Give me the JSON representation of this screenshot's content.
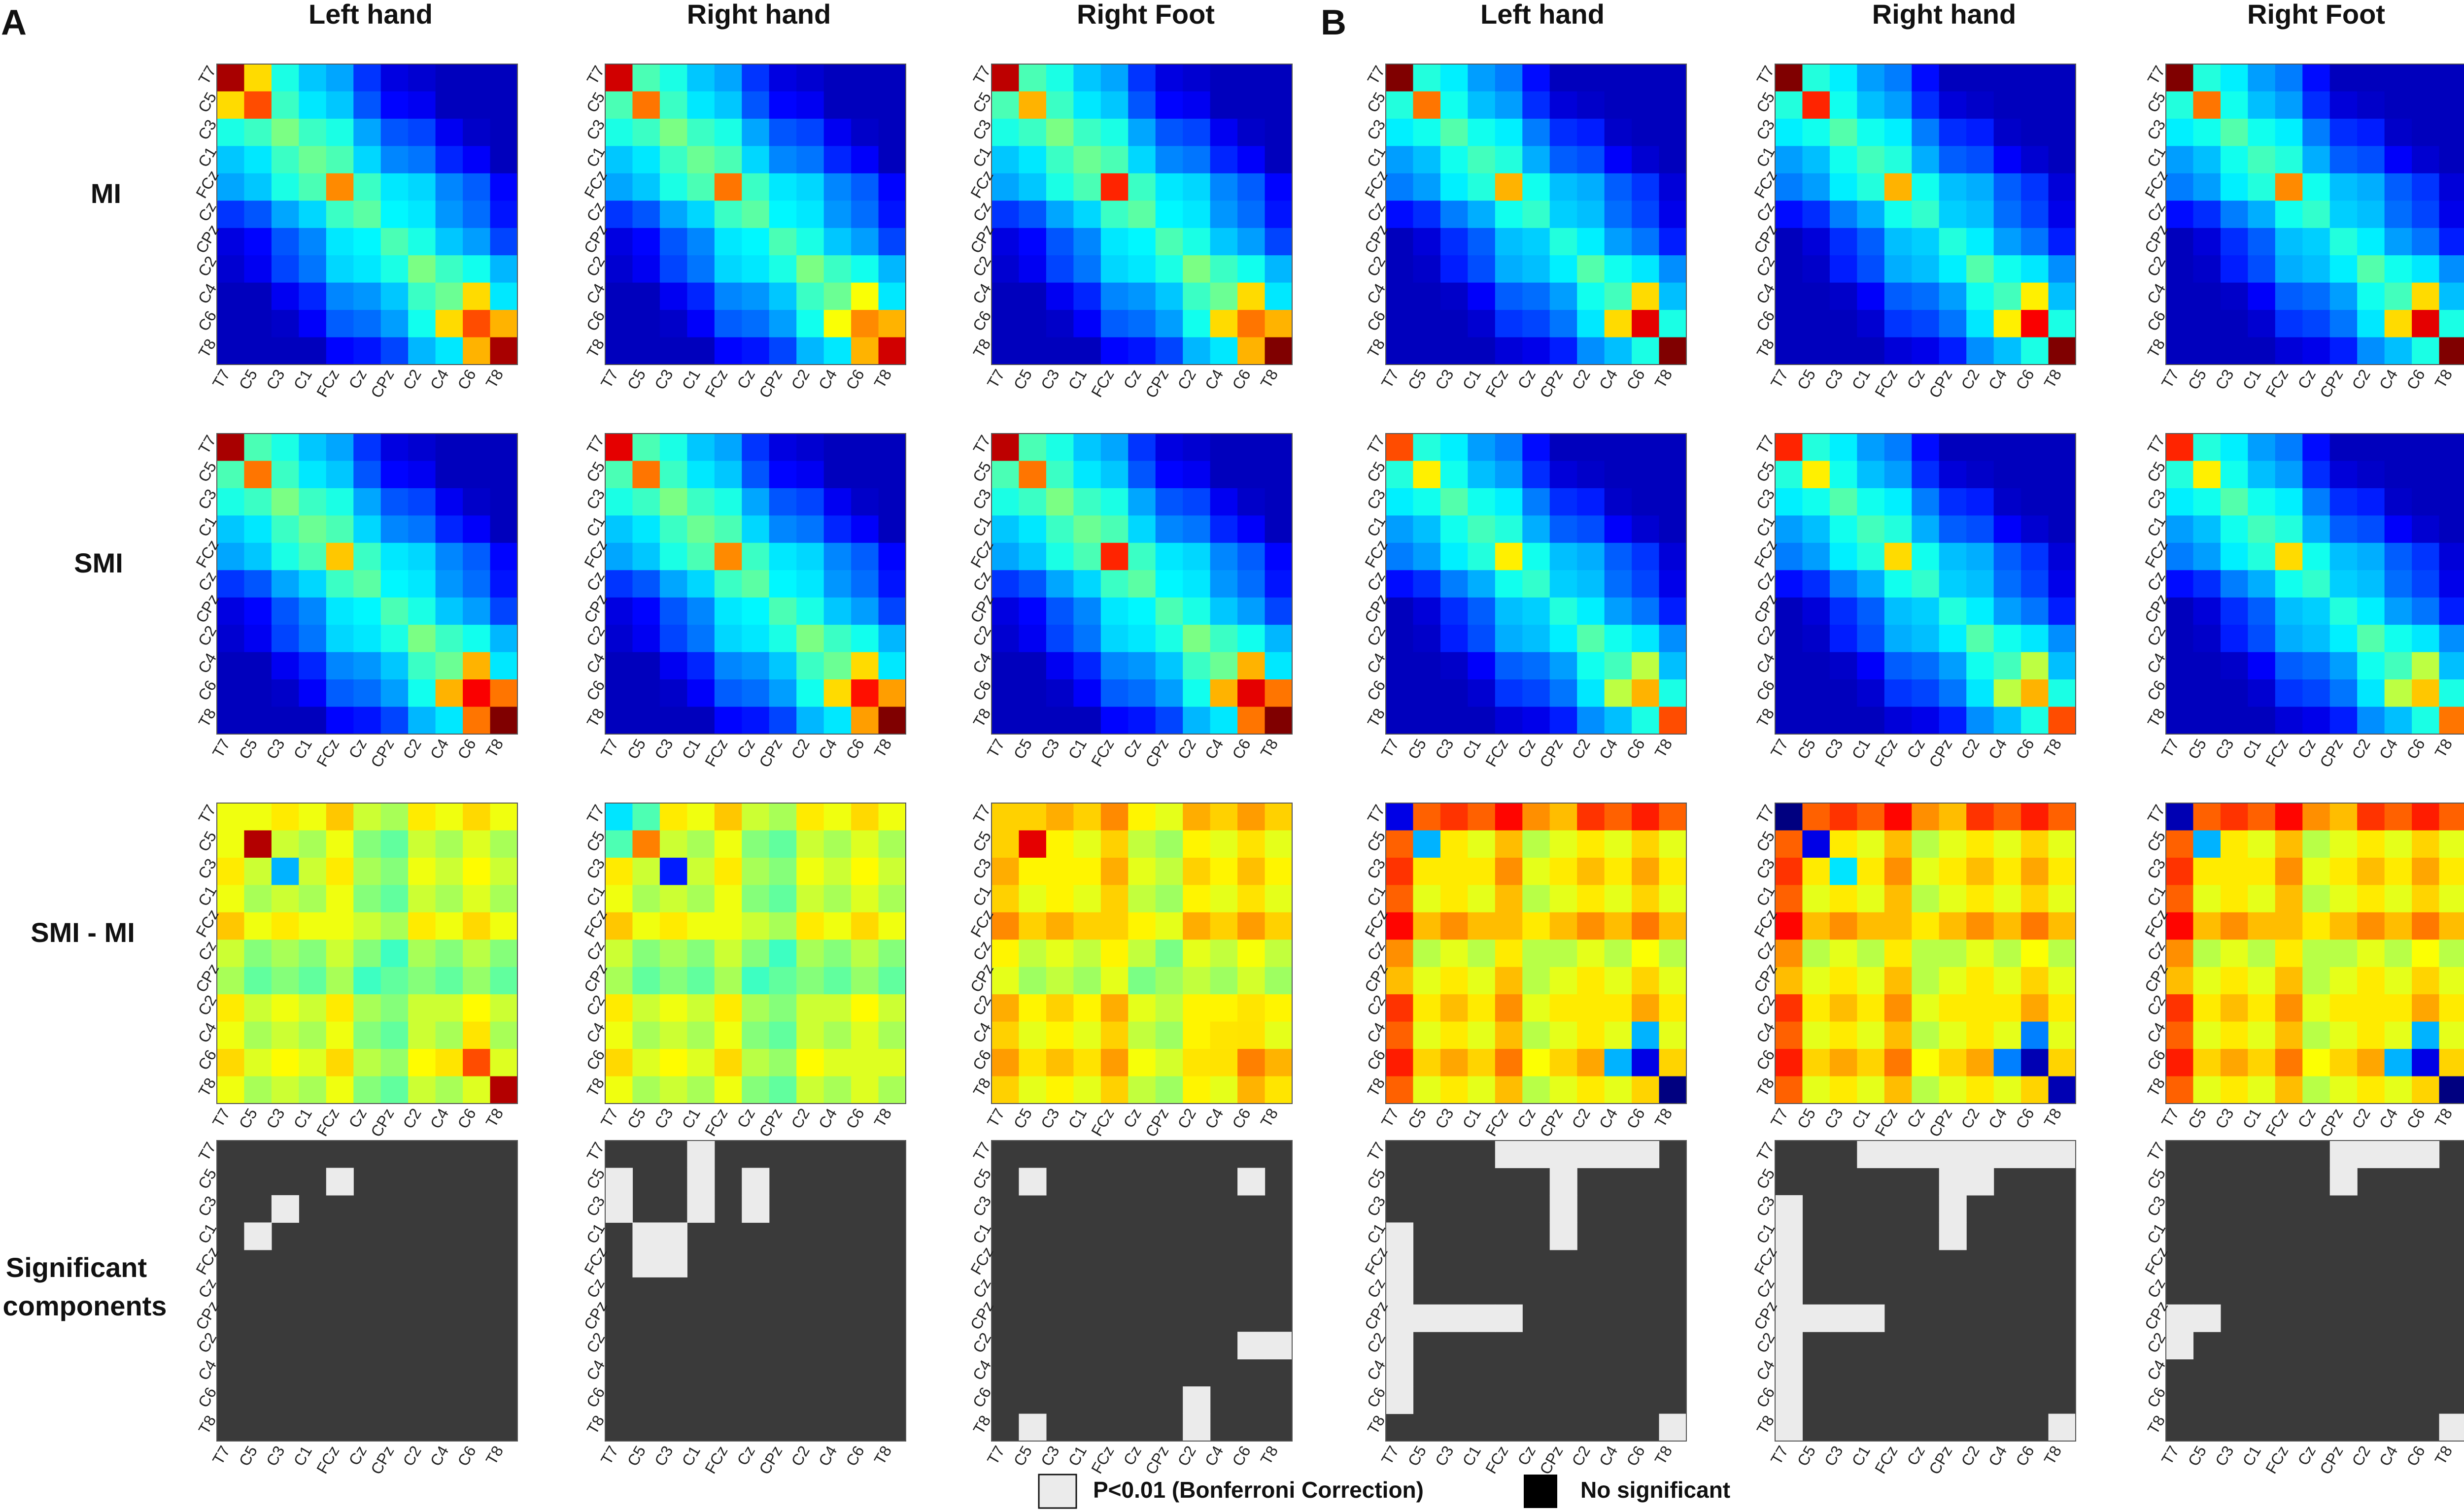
{
  "panel_letters": [
    "A",
    "B"
  ],
  "column_titles": [
    "Left hand",
    "Right hand",
    "Right Foot",
    "Left hand",
    "Right hand",
    "Right Foot"
  ],
  "row_labels": [
    [
      "MI"
    ],
    [
      "SMI"
    ],
    [
      "SMI - MI"
    ],
    [
      "Significant",
      "components"
    ]
  ],
  "channels": [
    "T7",
    "C5",
    "C3",
    "C1",
    "FCz",
    "Cz",
    "CPz",
    "C2",
    "C4",
    "C6",
    "T8"
  ],
  "colorbars": [
    {
      "ticks": [
        "50",
        "40",
        "30",
        "20",
        "10",
        "0"
      ],
      "range": [
        0,
        50
      ]
    },
    {
      "ticks": [
        "10",
        "5",
        "0",
        "-5",
        "-10"
      ],
      "range": [
        -10,
        10
      ]
    }
  ],
  "legend": {
    "significant_label": "P<0.01 (Bonferroni Correction)",
    "nonsignificant_label": "No significant",
    "significant_color": "#ebebeb",
    "nonsignificant_color": "#3a3a3a"
  },
  "chart_data": {
    "type": "heatmap",
    "colormap": "jet",
    "rows": [
      "MI",
      "SMI",
      "SMI - MI",
      "Significant components"
    ],
    "columns": [
      "A: Left hand",
      "A: Right hand",
      "A: Right Foot",
      "B: Left hand",
      "B: Right hand",
      "B: Right Foot"
    ],
    "overrides": [
      [
        [
          [
            0,
            0,
            48
          ],
          [
            1,
            1,
            40
          ],
          [
            4,
            4,
            37
          ],
          [
            9,
            9,
            40
          ],
          [
            10,
            10,
            48
          ],
          [
            8,
            9,
            33
          ],
          [
            9,
            8,
            33
          ],
          [
            10,
            9,
            35
          ],
          [
            9,
            10,
            35
          ],
          [
            0,
            1,
            33
          ],
          [
            1,
            0,
            33
          ]
        ],
        [
          [
            0,
            0,
            46
          ],
          [
            1,
            1,
            38
          ],
          [
            4,
            4,
            38
          ],
          [
            9,
            9,
            37
          ],
          [
            10,
            10,
            46
          ],
          [
            8,
            9,
            31
          ],
          [
            9,
            8,
            31
          ],
          [
            10,
            9,
            35
          ],
          [
            9,
            10,
            35
          ]
        ],
        [
          [
            0,
            0,
            47
          ],
          [
            1,
            1,
            35
          ],
          [
            4,
            4,
            42
          ],
          [
            9,
            9,
            38
          ],
          [
            10,
            10,
            50
          ],
          [
            8,
            9,
            33
          ],
          [
            9,
            8,
            33
          ],
          [
            10,
            9,
            35
          ],
          [
            9,
            10,
            35
          ]
        ],
        [
          [
            0,
            0,
            50
          ],
          [
            1,
            1,
            38
          ],
          [
            4,
            4,
            35
          ],
          [
            9,
            9,
            45
          ],
          [
            10,
            10,
            50
          ],
          [
            8,
            9,
            33
          ],
          [
            9,
            8,
            33
          ]
        ],
        [
          [
            0,
            0,
            50
          ],
          [
            1,
            1,
            42
          ],
          [
            4,
            4,
            35
          ],
          [
            9,
            9,
            44
          ],
          [
            10,
            10,
            50
          ],
          [
            8,
            9,
            32
          ],
          [
            9,
            8,
            32
          ]
        ],
        [
          [
            0,
            0,
            50
          ],
          [
            1,
            1,
            38
          ],
          [
            4,
            4,
            37
          ],
          [
            9,
            9,
            45
          ],
          [
            10,
            10,
            50
          ],
          [
            8,
            9,
            33
          ],
          [
            9,
            8,
            33
          ]
        ]
      ],
      [
        [
          [
            0,
            0,
            48
          ],
          [
            1,
            1,
            38
          ],
          [
            4,
            4,
            34
          ],
          [
            9,
            9,
            44
          ],
          [
            10,
            10,
            50
          ],
          [
            8,
            9,
            35
          ],
          [
            9,
            8,
            35
          ],
          [
            10,
            9,
            38
          ],
          [
            9,
            10,
            38
          ]
        ],
        [
          [
            0,
            0,
            45
          ],
          [
            1,
            1,
            38
          ],
          [
            4,
            4,
            37
          ],
          [
            9,
            9,
            43
          ],
          [
            10,
            10,
            50
          ],
          [
            8,
            9,
            33
          ],
          [
            9,
            8,
            33
          ],
          [
            10,
            9,
            36
          ],
          [
            9,
            10,
            36
          ]
        ],
        [
          [
            0,
            0,
            47
          ],
          [
            1,
            1,
            38
          ],
          [
            4,
            4,
            42
          ],
          [
            9,
            9,
            45
          ],
          [
            10,
            10,
            50
          ],
          [
            8,
            9,
            35
          ],
          [
            9,
            8,
            35
          ],
          [
            10,
            9,
            38
          ],
          [
            9,
            10,
            38
          ]
        ],
        [
          [
            0,
            0,
            40
          ],
          [
            1,
            1,
            32
          ],
          [
            4,
            4,
            32
          ],
          [
            9,
            9,
            35
          ],
          [
            10,
            10,
            40
          ],
          [
            8,
            9,
            28
          ],
          [
            9,
            8,
            28
          ]
        ],
        [
          [
            0,
            0,
            42
          ],
          [
            1,
            1,
            32
          ],
          [
            4,
            4,
            33
          ],
          [
            9,
            9,
            35
          ],
          [
            10,
            10,
            40
          ],
          [
            8,
            9,
            28
          ],
          [
            9,
            8,
            28
          ]
        ],
        [
          [
            0,
            0,
            42
          ],
          [
            1,
            1,
            32
          ],
          [
            4,
            4,
            33
          ],
          [
            9,
            9,
            34
          ],
          [
            10,
            10,
            38
          ],
          [
            8,
            9,
            28
          ],
          [
            9,
            8,
            28
          ]
        ]
      ],
      [
        [
          [
            1,
            1,
            9
          ],
          [
            2,
            2,
            -4
          ],
          [
            9,
            9,
            6
          ],
          [
            10,
            10,
            9
          ],
          [
            8,
            9,
            3
          ],
          [
            9,
            8,
            3
          ]
        ],
        [
          [
            0,
            0,
            -3
          ],
          [
            1,
            1,
            5
          ],
          [
            2,
            2,
            -7
          ],
          [
            1,
            0,
            -1
          ],
          [
            0,
            1,
            -1
          ]
        ],
        [
          [
            1,
            1,
            8
          ],
          [
            9,
            9,
            5
          ],
          [
            10,
            9,
            4
          ],
          [
            10,
            10,
            3
          ],
          [
            8,
            8,
            3
          ],
          [
            7,
            9,
            3
          ],
          [
            9,
            10,
            4
          ]
        ],
        [
          [
            0,
            0,
            -8
          ],
          [
            1,
            1,
            -4
          ],
          [
            9,
            9,
            -8
          ],
          [
            10,
            10,
            -10
          ],
          [
            8,
            9,
            -4
          ],
          [
            9,
            8,
            -4
          ]
        ],
        [
          [
            0,
            0,
            -10
          ],
          [
            1,
            1,
            -8
          ],
          [
            2,
            2,
            -3
          ],
          [
            9,
            9,
            -9
          ],
          [
            10,
            10,
            -9
          ],
          [
            8,
            9,
            -5
          ],
          [
            9,
            8,
            -5
          ]
        ],
        [
          [
            0,
            0,
            -9
          ],
          [
            1,
            1,
            -4
          ],
          [
            9,
            9,
            -8
          ],
          [
            10,
            10,
            -10
          ],
          [
            8,
            9,
            -4
          ],
          [
            9,
            8,
            -4
          ]
        ]
      ]
    ],
    "significance": [
      [
        [
          1,
          4
        ],
        [
          2,
          2
        ],
        [
          3,
          1
        ]
      ],
      [
        [
          0,
          3
        ],
        [
          1,
          0
        ],
        [
          1,
          3
        ],
        [
          1,
          5
        ],
        [
          2,
          5
        ],
        [
          2,
          0
        ],
        [
          2,
          3
        ],
        [
          3,
          1
        ],
        [
          3,
          2
        ],
        [
          4,
          1
        ],
        [
          4,
          2
        ]
      ],
      [
        [
          1,
          1
        ],
        [
          1,
          9
        ],
        [
          7,
          9
        ],
        [
          7,
          10
        ],
        [
          9,
          7
        ],
        [
          10,
          7
        ],
        [
          10,
          1
        ]
      ],
      [
        [
          0,
          4
        ],
        [
          0,
          5
        ],
        [
          0,
          6
        ],
        [
          0,
          7
        ],
        [
          0,
          8
        ],
        [
          0,
          9
        ],
        [
          1,
          6
        ],
        [
          2,
          6
        ],
        [
          3,
          6
        ],
        [
          3,
          0
        ],
        [
          4,
          0
        ],
        [
          5,
          0
        ],
        [
          6,
          0
        ],
        [
          6,
          1
        ],
        [
          6,
          2
        ],
        [
          6,
          3
        ],
        [
          6,
          4
        ],
        [
          7,
          0
        ],
        [
          8,
          0
        ],
        [
          9,
          0
        ],
        [
          10,
          10
        ]
      ],
      [
        [
          0,
          3
        ],
        [
          0,
          4
        ],
        [
          0,
          5
        ],
        [
          0,
          6
        ],
        [
          0,
          7
        ],
        [
          0,
          8
        ],
        [
          0,
          9
        ],
        [
          0,
          10
        ],
        [
          1,
          6
        ],
        [
          1,
          7
        ],
        [
          2,
          6
        ],
        [
          3,
          6
        ],
        [
          2,
          0
        ],
        [
          3,
          0
        ],
        [
          4,
          0
        ],
        [
          5,
          0
        ],
        [
          6,
          0
        ],
        [
          6,
          1
        ],
        [
          6,
          2
        ],
        [
          6,
          3
        ],
        [
          7,
          0
        ],
        [
          8,
          0
        ],
        [
          9,
          0
        ],
        [
          10,
          0
        ],
        [
          10,
          10
        ]
      ],
      [
        [
          0,
          6
        ],
        [
          0,
          7
        ],
        [
          0,
          8
        ],
        [
          0,
          9
        ],
        [
          1,
          6
        ],
        [
          6,
          0
        ],
        [
          6,
          1
        ],
        [
          7,
          0
        ],
        [
          10,
          10
        ]
      ]
    ]
  }
}
